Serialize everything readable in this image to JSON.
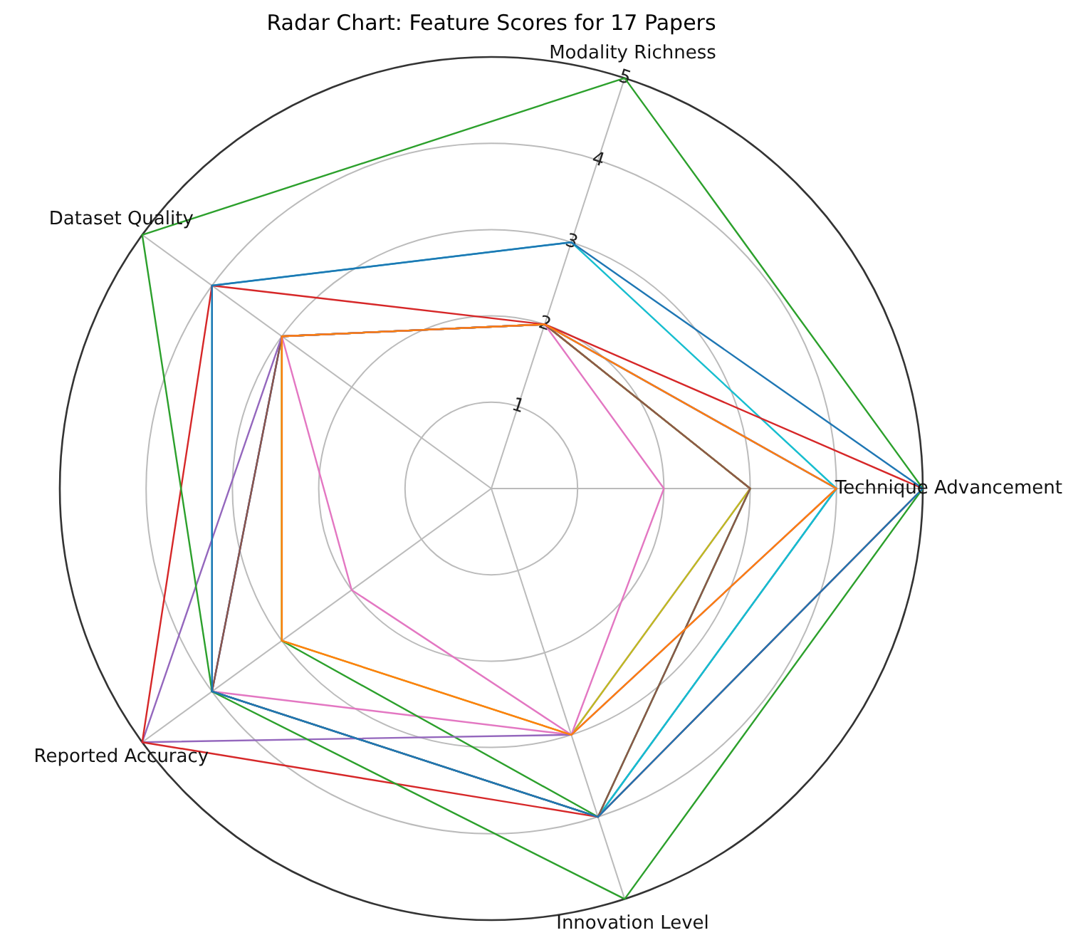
{
  "chart_data": {
    "type": "radar",
    "title": "Radar Chart: Feature Scores for 17 Papers",
    "categories": [
      "Modality Richness",
      "Technique Advancement",
      "Innovation Level",
      "Reported Accuracy",
      "Dataset Quality"
    ],
    "ylim": [
      0,
      5
    ],
    "yticks": [
      1,
      2,
      3,
      4,
      5
    ],
    "grid": true,
    "legend": false,
    "marker": "none",
    "line_style": "solid",
    "series": [
      {
        "color": "#1f77b4",
        "values": [
          3,
          5,
          4,
          4,
          4
        ]
      },
      {
        "color": "#ff7f0e",
        "values": [
          2,
          4,
          3,
          3,
          3
        ]
      },
      {
        "color": "#2ca02c",
        "values": [
          5,
          5,
          5,
          4,
          5
        ]
      },
      {
        "color": "#d62728",
        "values": [
          2,
          5,
          4,
          5,
          4
        ]
      },
      {
        "color": "#9467bd",
        "values": [
          2,
          4,
          3,
          5,
          3
        ]
      },
      {
        "color": "#8c564b",
        "values": [
          2,
          3,
          4,
          4,
          3
        ]
      },
      {
        "color": "#e377c2",
        "values": [
          2,
          2,
          3,
          2,
          3
        ]
      },
      {
        "color": "#bcbd22",
        "values": [
          2,
          3,
          3,
          3,
          3
        ]
      },
      {
        "color": "#17becf",
        "values": [
          3,
          4,
          4,
          4,
          4
        ]
      },
      {
        "color": "#2ca02c",
        "values": [
          2,
          3,
          4,
          3,
          3
        ]
      },
      {
        "color": "#1f77b4",
        "values": [
          2,
          4,
          4,
          4,
          3
        ]
      },
      {
        "color": "#e377c2",
        "values": [
          2,
          3,
          3,
          4,
          3
        ]
      }
    ]
  }
}
